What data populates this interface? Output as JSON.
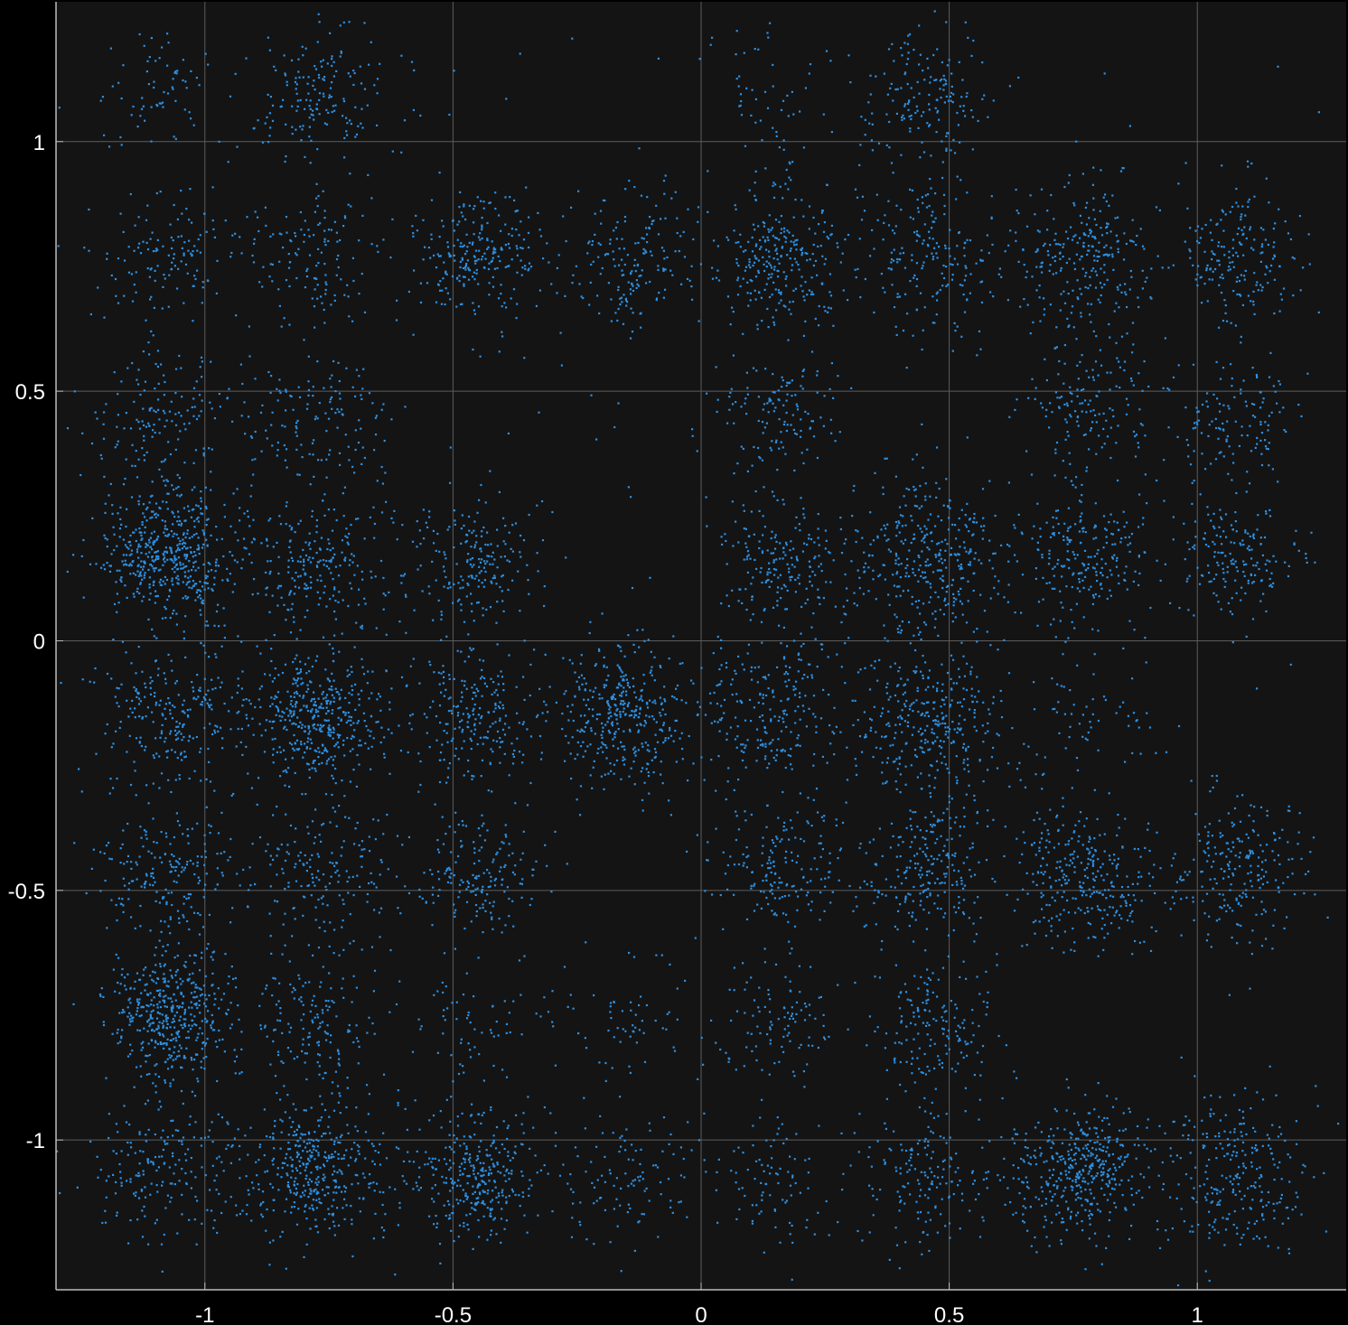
{
  "chart_data": {
    "type": "scatter",
    "title": "",
    "xlabel": "",
    "ylabel": "",
    "xlim": [
      -1.3,
      1.3
    ],
    "ylim": [
      -1.3,
      1.28
    ],
    "grid": true,
    "legend": "none",
    "xticks": [
      -1,
      -0.5,
      0,
      0.5,
      1
    ],
    "xtick_labels": [
      "-1",
      "-0.5",
      "0",
      "0.5",
      "1"
    ],
    "yticks": [
      1,
      0.5,
      0,
      -0.5,
      -1
    ],
    "ytick_labels": [
      "1",
      "0.5",
      "0",
      "-0.5",
      "-1"
    ],
    "colors": {
      "background": "#000000",
      "plot_area": "#141414",
      "grid": "#5c5c5c",
      "axis": "#bdbdbd",
      "points": "#2d8fe0"
    },
    "series": [
      {
        "description": "Gaussian clusters on a grid; each cluster given as center x, center y, standard deviation, point count",
        "clusters": [
          {
            "x": -1.07,
            "y": 0.17,
            "sd": 0.07,
            "n": 520
          },
          {
            "x": -1.07,
            "y": -0.75,
            "sd": 0.065,
            "n": 460
          },
          {
            "x": -0.77,
            "y": -0.15,
            "sd": 0.065,
            "n": 430
          },
          {
            "x": -0.78,
            "y": -1.06,
            "sd": 0.07,
            "n": 400
          },
          {
            "x": -0.45,
            "y": -1.07,
            "sd": 0.065,
            "n": 330
          },
          {
            "x": 0.77,
            "y": -1.06,
            "sd": 0.065,
            "n": 420
          },
          {
            "x": -0.15,
            "y": -0.15,
            "sd": 0.07,
            "n": 380
          },
          {
            "x": 0.47,
            "y": -0.16,
            "sd": 0.075,
            "n": 330
          },
          {
            "x": 0.46,
            "y": 0.17,
            "sd": 0.08,
            "n": 350
          },
          {
            "x": 0.76,
            "y": -0.47,
            "sd": 0.07,
            "n": 300
          },
          {
            "x": 0.15,
            "y": 0.77,
            "sd": 0.075,
            "n": 290
          },
          {
            "x": 0.77,
            "y": 0.76,
            "sd": 0.07,
            "n": 260
          },
          {
            "x": -0.45,
            "y": 0.77,
            "sd": 0.07,
            "n": 240
          },
          {
            "x": -0.46,
            "y": -0.15,
            "sd": 0.07,
            "n": 230
          },
          {
            "x": 0.15,
            "y": -0.15,
            "sd": 0.08,
            "n": 250
          },
          {
            "x": 0.77,
            "y": 0.17,
            "sd": 0.075,
            "n": 240
          },
          {
            "x": -0.77,
            "y": 1.1,
            "sd": 0.07,
            "n": 170
          },
          {
            "x": 0.45,
            "y": 1.09,
            "sd": 0.065,
            "n": 160
          },
          {
            "x": -1.08,
            "y": 0.44,
            "sd": 0.07,
            "n": 150
          },
          {
            "x": -0.77,
            "y": 0.44,
            "sd": 0.07,
            "n": 140
          },
          {
            "x": 0.16,
            "y": 0.45,
            "sd": 0.065,
            "n": 140
          },
          {
            "x": 0.78,
            "y": 0.46,
            "sd": 0.07,
            "n": 140
          },
          {
            "x": 1.08,
            "y": 0.45,
            "sd": 0.06,
            "n": 130
          },
          {
            "x": 1.08,
            "y": 0.77,
            "sd": 0.07,
            "n": 190
          },
          {
            "x": 0.46,
            "y": 0.78,
            "sd": 0.075,
            "n": 190
          },
          {
            "x": -0.14,
            "y": 0.76,
            "sd": 0.065,
            "n": 170
          },
          {
            "x": -1.08,
            "y": 0.77,
            "sd": 0.07,
            "n": 130
          },
          {
            "x": -0.77,
            "y": 0.77,
            "sd": 0.07,
            "n": 130
          },
          {
            "x": -1.1,
            "y": 1.1,
            "sd": 0.07,
            "n": 70
          },
          {
            "x": 0.13,
            "y": 1.1,
            "sd": 0.07,
            "n": 50
          },
          {
            "x": -0.77,
            "y": 0.15,
            "sd": 0.07,
            "n": 240
          },
          {
            "x": -0.46,
            "y": 0.16,
            "sd": 0.065,
            "n": 200
          },
          {
            "x": 0.15,
            "y": 0.15,
            "sd": 0.065,
            "n": 190
          },
          {
            "x": 1.08,
            "y": 0.16,
            "sd": 0.06,
            "n": 170
          },
          {
            "x": -1.07,
            "y": -0.15,
            "sd": 0.075,
            "n": 250
          },
          {
            "x": -1.08,
            "y": -0.47,
            "sd": 0.07,
            "n": 200
          },
          {
            "x": -0.77,
            "y": -0.46,
            "sd": 0.075,
            "n": 180
          },
          {
            "x": -0.45,
            "y": -0.46,
            "sd": 0.06,
            "n": 170
          },
          {
            "x": 0.15,
            "y": -0.46,
            "sd": 0.07,
            "n": 170
          },
          {
            "x": 0.46,
            "y": -0.46,
            "sd": 0.075,
            "n": 240
          },
          {
            "x": 1.08,
            "y": -0.46,
            "sd": 0.07,
            "n": 230
          },
          {
            "x": 0.78,
            "y": -0.16,
            "sd": 0.07,
            "n": 60
          },
          {
            "x": -0.77,
            "y": -0.77,
            "sd": 0.07,
            "n": 160
          },
          {
            "x": -0.45,
            "y": -0.77,
            "sd": 0.07,
            "n": 70
          },
          {
            "x": -0.14,
            "y": -0.77,
            "sd": 0.07,
            "n": 60
          },
          {
            "x": 0.16,
            "y": -0.77,
            "sd": 0.065,
            "n": 110
          },
          {
            "x": 0.47,
            "y": -0.78,
            "sd": 0.065,
            "n": 170
          },
          {
            "x": -1.08,
            "y": -1.07,
            "sd": 0.07,
            "n": 190
          },
          {
            "x": -0.14,
            "y": -1.07,
            "sd": 0.07,
            "n": 110
          },
          {
            "x": 0.15,
            "y": -1.08,
            "sd": 0.065,
            "n": 90
          },
          {
            "x": 0.46,
            "y": -1.07,
            "sd": 0.07,
            "n": 170
          },
          {
            "x": 1.08,
            "y": -1.07,
            "sd": 0.075,
            "n": 260
          }
        ],
        "background_noise_points": 220
      }
    ]
  }
}
